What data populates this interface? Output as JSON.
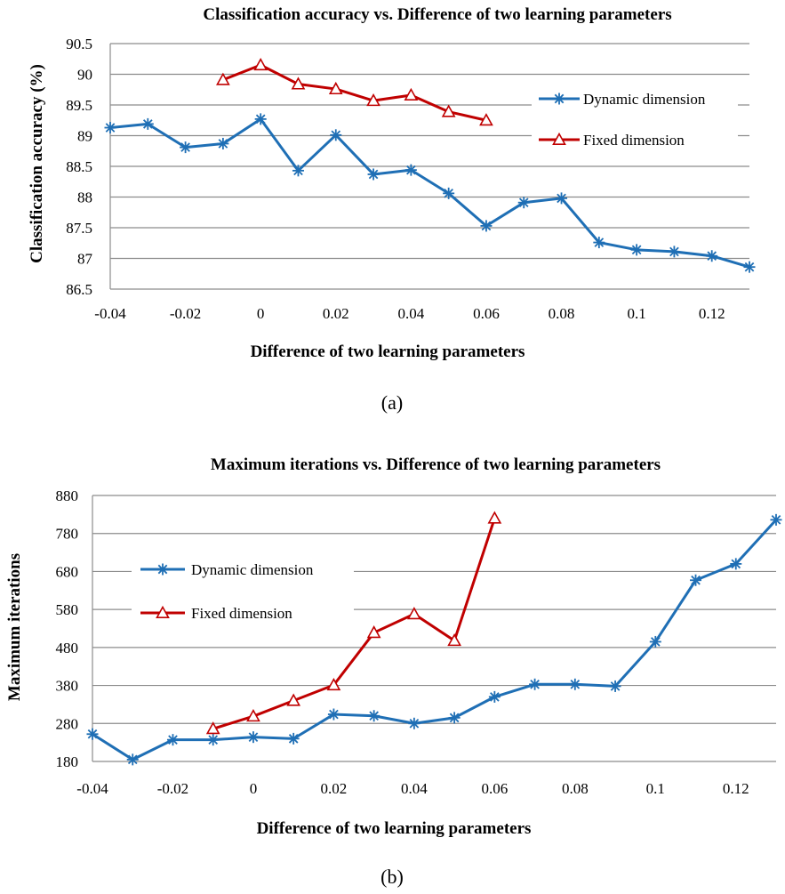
{
  "chart_data": [
    {
      "type": "line",
      "title": "Classification accuracy vs. Difference of two learning parameters",
      "xlabel": "Difference of two learning parameters",
      "ylabel": "Classification accuracy (%)",
      "caption": "(a)",
      "x_ticks": [
        "-0.04",
        "-0.02",
        "0",
        "0.02",
        "0.04",
        "0.06",
        "0.08",
        "0.1",
        "0.12"
      ],
      "y_ticks": [
        "86.5",
        "87",
        "87.5",
        "88",
        "88.5",
        "89",
        "89.5",
        "90",
        "90.5"
      ],
      "xlim": [
        -0.04,
        0.13
      ],
      "ylim": [
        86.5,
        90.5
      ],
      "grid": true,
      "legend_position": "top-right",
      "series": [
        {
          "name": "Dynamic dimension",
          "color": "#1F6FB5",
          "marker": "asterisk",
          "x": [
            -0.04,
            -0.03,
            -0.02,
            -0.01,
            0,
            0.01,
            0.02,
            0.03,
            0.04,
            0.05,
            0.06,
            0.07,
            0.08,
            0.09,
            0.1,
            0.11,
            0.12,
            0.13
          ],
          "y": [
            89.13,
            89.19,
            88.81,
            88.87,
            89.27,
            88.43,
            89.01,
            88.37,
            88.44,
            88.06,
            87.53,
            87.91,
            87.98,
            87.26,
            87.14,
            87.11,
            87.04,
            86.86
          ]
        },
        {
          "name": "Fixed dimension",
          "color": "#C00000",
          "marker": "triangle",
          "x": [
            -0.01,
            0,
            0.01,
            0.02,
            0.03,
            0.04,
            0.05,
            0.06
          ],
          "y": [
            89.91,
            90.15,
            89.84,
            89.76,
            89.57,
            89.66,
            89.39,
            89.25
          ]
        }
      ]
    },
    {
      "type": "line",
      "title": "Maximum iterations vs. Difference of two learning parameters",
      "xlabel": "Difference of two learning parameters",
      "ylabel": "Maximum iterations",
      "caption": "(b)",
      "x_ticks": [
        "-0.04",
        "-0.02",
        "0",
        "0.02",
        "0.04",
        "0.06",
        "0.08",
        "0.1",
        "0.12"
      ],
      "y_ticks": [
        "180",
        "280",
        "380",
        "480",
        "580",
        "680",
        "780",
        "880"
      ],
      "xlim": [
        -0.04,
        0.13
      ],
      "ylim": [
        180,
        880
      ],
      "grid": true,
      "legend_position": "top-left",
      "series": [
        {
          "name": "Dynamic dimension",
          "color": "#1F6FB5",
          "marker": "asterisk",
          "x": [
            -0.04,
            -0.03,
            -0.02,
            -0.01,
            0,
            0.01,
            0.02,
            0.03,
            0.04,
            0.05,
            0.06,
            0.07,
            0.08,
            0.09,
            0.1,
            0.11,
            0.12,
            0.13
          ],
          "y": [
            252,
            185,
            237,
            237,
            244,
            240,
            304,
            300,
            280,
            295,
            350,
            383,
            383,
            378,
            495,
            657,
            700,
            816
          ]
        },
        {
          "name": "Fixed dimension",
          "color": "#C00000",
          "marker": "triangle",
          "x": [
            -0.01,
            0,
            0.01,
            0.02,
            0.03,
            0.04,
            0.05,
            0.06
          ],
          "y": [
            266,
            299,
            340,
            381,
            519,
            568,
            498,
            820
          ]
        }
      ]
    }
  ]
}
